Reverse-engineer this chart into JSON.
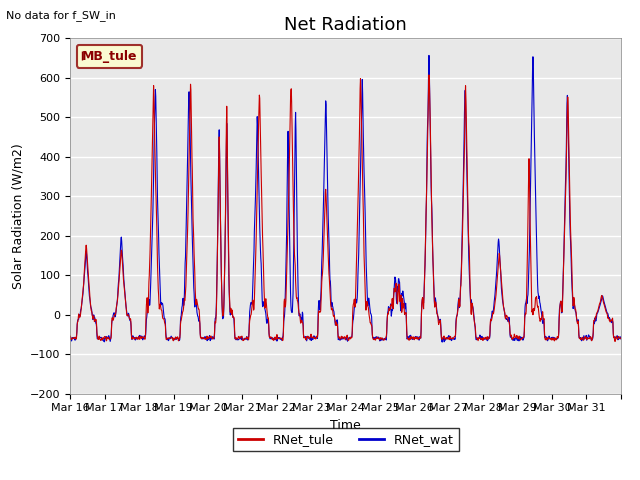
{
  "title": "Net Radiation",
  "subtitle": "No data for f_SW_in",
  "xlabel": "Time",
  "ylabel": "Solar Radiation (W/m2)",
  "legend_label1": "RNet_tule",
  "legend_label2": "RNet_wat",
  "color1": "#cc0000",
  "color2": "#0000cc",
  "ylim": [
    -200,
    700
  ],
  "yticks": [
    -200,
    -100,
    0,
    100,
    200,
    300,
    400,
    500,
    600,
    700
  ],
  "xtick_labels": [
    "Mar 16",
    "Mar 17",
    "Mar 18",
    "Mar 19",
    "Mar 20",
    "Mar 21",
    "Mar 22",
    "Mar 23",
    "Mar 24",
    "Mar 25",
    "Mar 26",
    "Mar 27",
    "Mar 28",
    "Mar 29",
    "Mar 30",
    "Mar 31"
  ],
  "legend_box_color": "#ffffcc",
  "legend_box_edge": "#8b0000",
  "legend_box_label": "MB_tule",
  "plot_bg_color": "#e8e8e8",
  "linewidth": 0.8,
  "n_days": 16,
  "pts_per_day": 96,
  "title_fontsize": 13,
  "axis_fontsize": 9,
  "tick_fontsize": 8
}
